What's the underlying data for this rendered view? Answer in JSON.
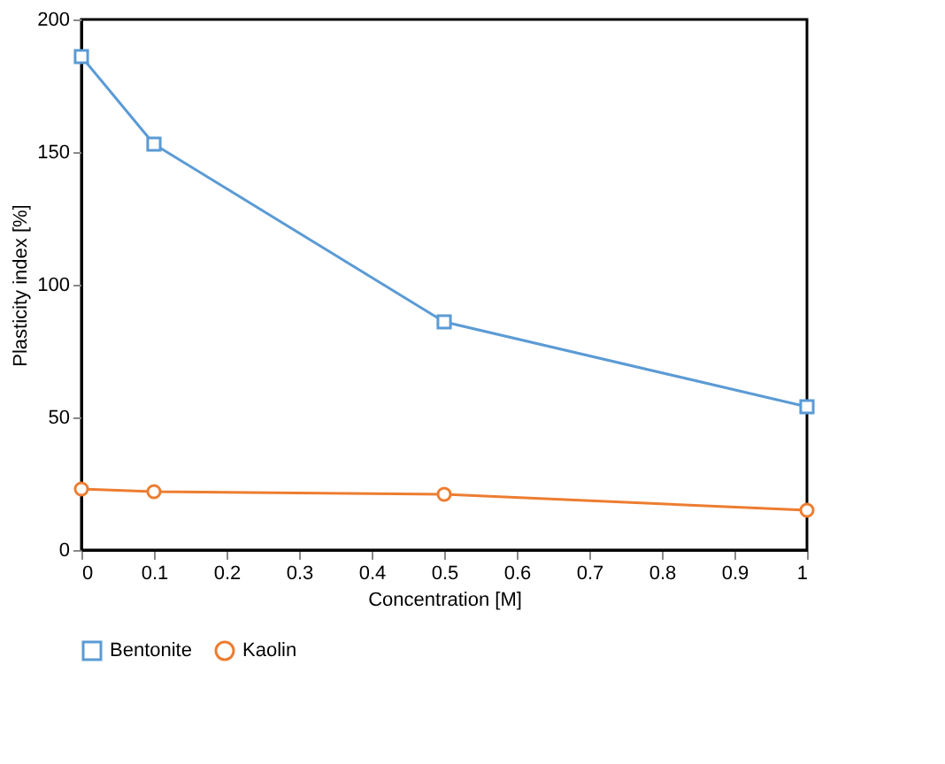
{
  "chart_data": {
    "type": "line",
    "xlabel": "Concentration [M]",
    "ylabel": "Plasticity index [%]",
    "x": [
      0,
      0.1,
      0.5,
      1
    ],
    "series": [
      {
        "name": "Bentonite",
        "color": "#5b9bd5",
        "marker": "square",
        "values": [
          186,
          153,
          86,
          54
        ]
      },
      {
        "name": "Kaolin",
        "color": "#ed7d31",
        "marker": "circle",
        "values": [
          23,
          22,
          21,
          15
        ]
      }
    ],
    "xlim": [
      0,
      1
    ],
    "xticks": [
      0,
      0.1,
      0.2,
      0.3,
      0.4,
      0.5,
      0.6,
      0.7,
      0.8,
      0.9,
      1
    ],
    "ylim": [
      0,
      200
    ],
    "yticks": [
      0,
      50,
      100,
      150,
      200
    ],
    "grid": false,
    "legend": "bottom",
    "line_style": "solid"
  }
}
